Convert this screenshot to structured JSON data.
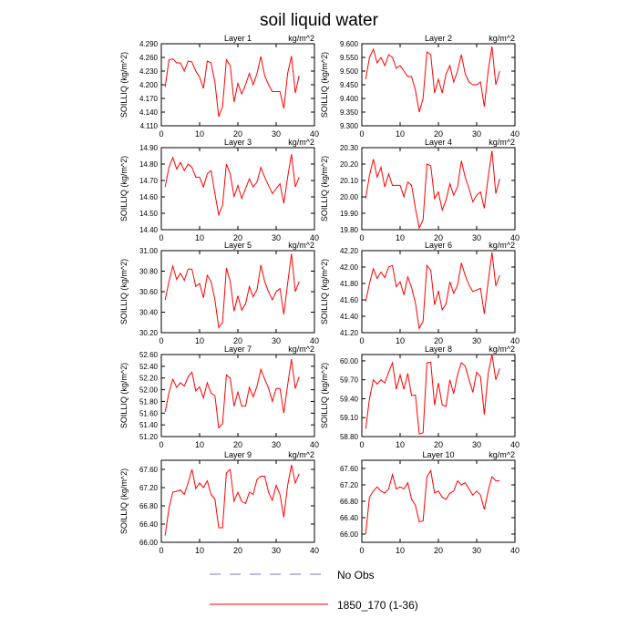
{
  "title": "soil liquid water",
  "colors": {
    "series": "#ff0000",
    "no_obs": "#7777cc",
    "axis": "#000000"
  },
  "legend": {
    "no_obs_label": "No Obs",
    "series_label": "1850_170 (1-36)"
  },
  "chart_data": [
    {
      "type": "line",
      "title": "Layer 1",
      "units": "kg/m^2",
      "ylabel": "SOILLIQ  (kg/m^2)",
      "xlim": [
        0,
        40
      ],
      "xticks": [
        0,
        10,
        20,
        30,
        40
      ],
      "ylim": [
        4.11,
        4.29
      ],
      "yticks": [
        "4.110",
        "4.140",
        "4.170",
        "4.200",
        "4.230",
        "4.260",
        "4.290"
      ],
      "series": [
        {
          "name": "1850_170 (1-36)",
          "x": [
            1,
            2,
            3,
            4,
            5,
            6,
            7,
            8,
            9,
            10,
            11,
            12,
            13,
            14,
            15,
            16,
            17,
            18,
            19,
            20,
            21,
            22,
            23,
            24,
            25,
            26,
            27,
            28,
            29,
            30,
            31,
            32,
            33,
            34,
            35,
            36
          ],
          "values": [
            4.195,
            4.255,
            4.257,
            4.248,
            4.248,
            4.23,
            4.252,
            4.25,
            4.23,
            4.217,
            4.192,
            4.252,
            4.248,
            4.205,
            4.13,
            4.152,
            4.255,
            4.242,
            4.162,
            4.203,
            4.18,
            4.2,
            4.225,
            4.2,
            4.225,
            4.262,
            4.22,
            4.2,
            4.185,
            4.185,
            4.185,
            4.148,
            4.225,
            4.263,
            4.182,
            4.22
          ]
        }
      ]
    },
    {
      "type": "line",
      "title": "Layer 2",
      "units": "kg/m^2",
      "ylabel": "SOILLIQ  (kg/m^2)",
      "xlim": [
        0,
        40
      ],
      "xticks": [
        0,
        10,
        20,
        30,
        40
      ],
      "ylim": [
        9.3,
        9.6
      ],
      "yticks": [
        "9.300",
        "9.350",
        "9.400",
        "9.450",
        "9.500",
        "9.550",
        "9.600"
      ],
      "series": [
        {
          "name": "1850_170 (1-36)",
          "x": [
            1,
            2,
            3,
            4,
            5,
            6,
            7,
            8,
            9,
            10,
            11,
            12,
            13,
            14,
            15,
            16,
            17,
            18,
            19,
            20,
            21,
            22,
            23,
            24,
            25,
            26,
            27,
            28,
            29,
            30,
            31,
            32,
            33,
            34,
            35,
            36
          ],
          "values": [
            9.47,
            9.55,
            9.58,
            9.53,
            9.55,
            9.52,
            9.56,
            9.55,
            9.51,
            9.52,
            9.5,
            9.48,
            9.48,
            9.43,
            9.35,
            9.4,
            9.57,
            9.56,
            9.42,
            9.47,
            9.42,
            9.49,
            9.52,
            9.46,
            9.5,
            9.56,
            9.49,
            9.46,
            9.45,
            9.45,
            9.46,
            9.37,
            9.5,
            9.59,
            9.45,
            9.5
          ]
        }
      ]
    },
    {
      "type": "line",
      "title": "Layer 3",
      "units": "kg/m^2",
      "ylabel": "SOILLIQ  (kg/m^2)",
      "xlim": [
        0,
        40
      ],
      "xticks": [
        0,
        10,
        20,
        30,
        40
      ],
      "ylim": [
        14.4,
        14.9
      ],
      "yticks": [
        "14.40",
        "14.50",
        "14.60",
        "14.70",
        "14.80",
        "14.90"
      ],
      "series": [
        {
          "name": "1850_170 (1-36)",
          "x": [
            1,
            2,
            3,
            4,
            5,
            6,
            7,
            8,
            9,
            10,
            11,
            12,
            13,
            14,
            15,
            16,
            17,
            18,
            19,
            20,
            21,
            22,
            23,
            24,
            25,
            26,
            27,
            28,
            29,
            30,
            31,
            32,
            33,
            34,
            35,
            36
          ],
          "values": [
            14.66,
            14.78,
            14.84,
            14.77,
            14.81,
            14.76,
            14.8,
            14.78,
            14.72,
            14.72,
            14.66,
            14.74,
            14.76,
            14.62,
            14.49,
            14.55,
            14.8,
            14.74,
            14.6,
            14.67,
            14.59,
            14.65,
            14.71,
            14.66,
            14.69,
            14.78,
            14.72,
            14.67,
            14.62,
            14.65,
            14.68,
            14.56,
            14.72,
            14.86,
            14.66,
            14.72
          ]
        }
      ]
    },
    {
      "type": "line",
      "title": "Layer 4",
      "units": "kg/m^2",
      "ylabel": "SOILLIQ  (kg/m^2)",
      "xlim": [
        0,
        40
      ],
      "xticks": [
        0,
        10,
        20,
        30,
        40
      ],
      "ylim": [
        19.8,
        20.3
      ],
      "yticks": [
        "19.80",
        "19.90",
        "20.00",
        "20.10",
        "20.20",
        "20.30"
      ],
      "series": [
        {
          "name": "1850_170 (1-36)",
          "x": [
            1,
            2,
            3,
            4,
            5,
            6,
            7,
            8,
            9,
            10,
            11,
            12,
            13,
            14,
            15,
            16,
            17,
            18,
            19,
            20,
            21,
            22,
            23,
            24,
            25,
            26,
            27,
            28,
            29,
            30,
            31,
            32,
            33,
            34,
            35,
            36
          ],
          "values": [
            19.99,
            20.13,
            20.23,
            20.12,
            20.18,
            20.06,
            20.14,
            20.07,
            20.07,
            20.07,
            20.0,
            20.09,
            20.07,
            19.93,
            19.81,
            19.86,
            20.2,
            20.19,
            19.99,
            20.03,
            19.92,
            19.98,
            20.08,
            20.01,
            20.06,
            20.22,
            20.12,
            20.05,
            19.97,
            20.01,
            20.03,
            19.93,
            20.12,
            20.28,
            20.02,
            20.11
          ]
        }
      ]
    },
    {
      "type": "line",
      "title": "Layer 5",
      "units": "kg/m^2",
      "ylabel": "SOILLIQ  (kg/m^2)",
      "xlim": [
        0,
        40
      ],
      "xticks": [
        0,
        10,
        20,
        30,
        40
      ],
      "ylim": [
        30.2,
        31.0
      ],
      "yticks": [
        "30.20",
        "30.40",
        "30.60",
        "30.80",
        "31.00"
      ],
      "series": [
        {
          "name": "1850_170 (1-36)",
          "x": [
            1,
            2,
            3,
            4,
            5,
            6,
            7,
            8,
            9,
            10,
            11,
            12,
            13,
            14,
            15,
            16,
            17,
            18,
            19,
            20,
            21,
            22,
            23,
            24,
            25,
            26,
            27,
            28,
            29,
            30,
            31,
            32,
            33,
            34,
            35,
            36
          ],
          "values": [
            30.52,
            30.7,
            30.85,
            30.72,
            30.78,
            30.71,
            30.82,
            30.82,
            30.65,
            30.68,
            30.54,
            30.76,
            30.7,
            30.52,
            30.25,
            30.3,
            30.83,
            30.7,
            30.41,
            30.56,
            30.42,
            30.48,
            30.65,
            30.55,
            30.62,
            30.86,
            30.7,
            30.6,
            30.52,
            30.6,
            30.63,
            30.38,
            30.68,
            30.97,
            30.6,
            30.7
          ]
        }
      ]
    },
    {
      "type": "line",
      "title": "Layer 6",
      "units": "kg/m^2",
      "ylabel": "SOILLIQ  (kg/m^2)",
      "xlim": [
        0,
        40
      ],
      "xticks": [
        0,
        10,
        20,
        30,
        40
      ],
      "ylim": [
        41.2,
        42.2
      ],
      "yticks": [
        "41.20",
        "41.40",
        "41.60",
        "41.80",
        "42.00",
        "42.20"
      ],
      "series": [
        {
          "name": "1850_170 (1-36)",
          "x": [
            1,
            2,
            3,
            4,
            5,
            6,
            7,
            8,
            9,
            10,
            11,
            12,
            13,
            14,
            15,
            16,
            17,
            18,
            19,
            20,
            21,
            22,
            23,
            24,
            25,
            26,
            27,
            28,
            29,
            30,
            31,
            32,
            33,
            34,
            35,
            36
          ],
          "values": [
            41.58,
            41.8,
            41.98,
            41.86,
            41.94,
            41.87,
            42.0,
            42.02,
            41.76,
            41.82,
            41.66,
            41.88,
            41.75,
            41.56,
            41.25,
            41.34,
            42.02,
            41.96,
            41.54,
            41.71,
            41.48,
            41.55,
            41.82,
            41.68,
            41.78,
            42.05,
            41.9,
            41.78,
            41.7,
            41.72,
            41.74,
            41.43,
            41.82,
            42.18,
            41.77,
            41.9
          ]
        }
      ]
    },
    {
      "type": "line",
      "title": "Layer 7",
      "units": "kg/m^2",
      "ylabel": "SOILLIQ  (kg/m^2)",
      "xlim": [
        0,
        40
      ],
      "xticks": [
        0,
        10,
        20,
        30,
        40
      ],
      "ylim": [
        51.2,
        52.6
      ],
      "yticks": [
        "51.20",
        "51.40",
        "51.60",
        "51.80",
        "52.00",
        "52.20",
        "52.40",
        "52.60"
      ],
      "series": [
        {
          "name": "1850_170 (1-36)",
          "x": [
            1,
            2,
            3,
            4,
            5,
            6,
            7,
            8,
            9,
            10,
            11,
            12,
            13,
            14,
            15,
            16,
            17,
            18,
            19,
            20,
            21,
            22,
            23,
            24,
            25,
            26,
            27,
            28,
            29,
            30,
            31,
            32,
            33,
            34,
            35,
            36
          ],
          "values": [
            51.62,
            51.95,
            52.18,
            52.04,
            52.12,
            52.06,
            52.22,
            52.3,
            51.98,
            52.05,
            51.86,
            52.12,
            51.94,
            51.9,
            51.35,
            51.42,
            52.25,
            52.2,
            51.72,
            51.96,
            51.72,
            51.72,
            52.04,
            51.88,
            52.06,
            52.35,
            52.18,
            52.03,
            51.8,
            52.02,
            52.02,
            51.6,
            52.08,
            52.52,
            52.02,
            52.22
          ]
        }
      ]
    },
    {
      "type": "line",
      "title": "Layer 8",
      "units": "kg/m^2",
      "ylabel": "SOILLIQ  (kg/m^2)",
      "xlim": [
        0,
        40
      ],
      "xticks": [
        0,
        10,
        20,
        30,
        40
      ],
      "ylim": [
        58.8,
        60.1
      ],
      "yticks": [
        "58.80",
        "59.10",
        "59.40",
        "59.70",
        "60.00"
      ],
      "series": [
        {
          "name": "1850_170 (1-36)",
          "x": [
            1,
            2,
            3,
            4,
            5,
            6,
            7,
            8,
            9,
            10,
            11,
            12,
            13,
            14,
            15,
            16,
            17,
            18,
            19,
            20,
            21,
            22,
            23,
            24,
            25,
            26,
            27,
            28,
            29,
            30,
            31,
            32,
            33,
            34,
            35,
            36
          ],
          "values": [
            58.92,
            59.4,
            59.7,
            59.63,
            59.7,
            59.65,
            59.82,
            59.97,
            59.55,
            59.78,
            59.55,
            59.8,
            59.45,
            59.46,
            58.84,
            58.86,
            59.97,
            59.98,
            59.3,
            59.65,
            59.3,
            59.28,
            59.7,
            59.48,
            59.78,
            59.97,
            59.92,
            59.7,
            59.5,
            59.82,
            59.75,
            59.15,
            59.8,
            60.1,
            59.7,
            59.88
          ]
        }
      ]
    },
    {
      "type": "line",
      "title": "Layer 9",
      "units": "kg/m^2",
      "ylabel": "SOILLIQ  (kg/m^2)",
      "xlim": [
        0,
        40
      ],
      "xticks": [
        0,
        10,
        20,
        30,
        40
      ],
      "ylim": [
        66.0,
        67.8
      ],
      "yticks": [
        "66.00",
        "66.40",
        "66.80",
        "67.20",
        "67.60"
      ],
      "series": [
        {
          "name": "1850_170 (1-36)",
          "x": [
            1,
            2,
            3,
            4,
            5,
            6,
            7,
            8,
            9,
            10,
            11,
            12,
            13,
            14,
            15,
            16,
            17,
            18,
            19,
            20,
            21,
            22,
            23,
            24,
            25,
            26,
            27,
            28,
            29,
            30,
            31,
            32,
            33,
            34,
            35,
            36
          ],
          "values": [
            66.15,
            66.75,
            67.1,
            67.12,
            67.15,
            67.05,
            67.3,
            67.6,
            67.18,
            67.3,
            67.2,
            67.35,
            67.05,
            66.95,
            66.32,
            66.32,
            67.52,
            67.6,
            66.9,
            67.1,
            66.9,
            66.85,
            67.1,
            67.05,
            67.38,
            67.45,
            67.45,
            67.1,
            66.92,
            67.25,
            67.05,
            66.55,
            67.25,
            67.7,
            67.3,
            67.5
          ]
        }
      ]
    },
    {
      "type": "line",
      "title": "Layer 10",
      "units": "kg/m^2",
      "ylabel": "",
      "xlim": [
        0,
        40
      ],
      "xticks": [
        0,
        10,
        20,
        30,
        40
      ],
      "ylim": [
        65.8,
        67.8
      ],
      "yticks": [
        "66.00",
        "66.40",
        "66.80",
        "67.20",
        "67.60"
      ],
      "series": [
        {
          "name": "1850_170 (1-36)",
          "x": [
            1,
            2,
            3,
            4,
            5,
            6,
            7,
            8,
            9,
            10,
            11,
            12,
            13,
            14,
            15,
            16,
            17,
            18,
            19,
            20,
            21,
            22,
            23,
            24,
            25,
            26,
            27,
            28,
            29,
            30,
            31,
            32,
            33,
            34,
            35,
            36
          ],
          "values": [
            66.0,
            66.9,
            67.05,
            67.15,
            67.05,
            67.0,
            67.1,
            67.45,
            67.1,
            67.15,
            67.1,
            67.25,
            66.85,
            66.7,
            66.3,
            66.32,
            67.4,
            67.55,
            67.0,
            67.05,
            66.9,
            66.85,
            67.0,
            67.05,
            67.3,
            67.2,
            67.25,
            67.1,
            66.95,
            67.05,
            66.95,
            66.6,
            67.05,
            67.4,
            67.3,
            67.3
          ]
        }
      ]
    }
  ]
}
